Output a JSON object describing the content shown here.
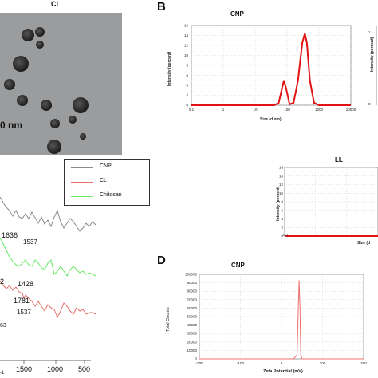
{
  "panels": {
    "A": {
      "title": "CL",
      "scale_bar": "0 nm"
    },
    "B": {
      "letter": "B",
      "cnp": {
        "title": "CNP",
        "xlabel": "Size (d.nm)",
        "ylabel": "Intensity (percent)",
        "xticks": [
          "0.1",
          "1",
          "10",
          "100",
          "1000",
          "10000"
        ],
        "yticks": [
          "0",
          "2",
          "4",
          "6",
          "8",
          "10",
          "12",
          "14",
          "16"
        ]
      },
      "ll": {
        "title": "LL",
        "xlabel": "Size (d",
        "ylabel": "Intensity (percent)",
        "xticks": [
          "0.1"
        ],
        "yticks": [
          "0",
          "2",
          "4",
          "6",
          "8",
          "10",
          "12",
          "14",
          "16"
        ]
      },
      "partial_ylabel": "Intensity (percent)"
    },
    "C": {
      "legend": [
        "CNP",
        "CL",
        "Chitosan"
      ],
      "annotations": [
        "1636",
        "1537",
        "2",
        "1428",
        "1781",
        "1537",
        "63"
      ],
      "xticks": [
        "1500",
        "1000",
        "500"
      ],
      "left_fragment": "-1"
    },
    "D": {
      "letter": "D",
      "title": "CNP",
      "xlabel": "Zeta Potential (mV)",
      "ylabel": "Total Counts",
      "xticks": [
        "-200",
        "-100",
        "0",
        "100",
        "200"
      ],
      "yticks": [
        "0",
        "10000",
        "20000",
        "30000",
        "40000",
        "50000",
        "60000",
        "70000",
        "80000",
        "90000",
        "100000"
      ]
    }
  },
  "colors": {
    "cnp_line": "#8a8a8a",
    "cl_line": "#e8716a",
    "chitosan_line": "#69e86a",
    "dls_line": "#e01414",
    "zeta_line": "#f07070"
  },
  "chart_data": [
    {
      "type": "line",
      "title": "CNP",
      "xlabel": "Size (d.nm)",
      "ylabel": "Intensity (percent)",
      "x_scale": "log",
      "xlim": [
        0.1,
        10000
      ],
      "ylim": [
        0,
        16
      ],
      "series": [
        {
          "x": [
            0.1,
            40,
            55,
            70,
            80,
            95,
            120,
            160,
            220,
            300,
            360,
            420,
            520,
            700,
            1000,
            3000,
            10000
          ],
          "y": [
            0,
            0,
            0.5,
            3.5,
            5.0,
            3.2,
            0.2,
            0.5,
            5.0,
            12.5,
            14.4,
            12.5,
            5.0,
            0.5,
            0,
            0,
            0
          ]
        }
      ]
    },
    {
      "type": "line",
      "title": "LL",
      "xlabel": "Size (d",
      "ylabel": "Intensity (percent)",
      "x_scale": "log",
      "ylim": [
        0,
        16
      ],
      "series": [
        {
          "x": [
            0.1,
            1,
            10,
            100
          ],
          "y": [
            0,
            0,
            0,
            0
          ]
        }
      ]
    },
    {
      "type": "line",
      "title": "CNP",
      "xlabel": "Zeta Potential (mV)",
      "ylabel": "Total Counts",
      "xlim": [
        -200,
        200
      ],
      "ylim": [
        0,
        100000
      ],
      "series": [
        {
          "x": [
            -200,
            30,
            38,
            41,
            43,
            45,
            47,
            50,
            200
          ],
          "y": [
            0,
            0,
            5000,
            60000,
            93000,
            60000,
            5000,
            0,
            0
          ]
        }
      ]
    }
  ]
}
